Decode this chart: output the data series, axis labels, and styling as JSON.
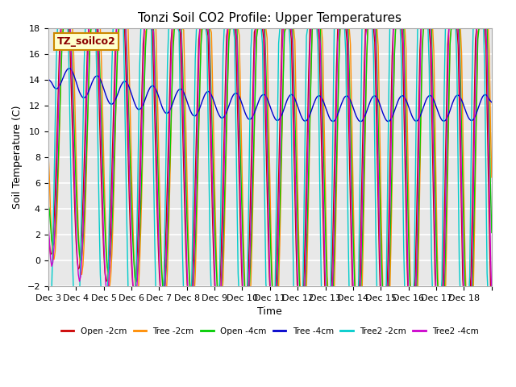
{
  "title": "Tonzi Soil CO2 Profile: Upper Temperatures",
  "xlabel": "Time",
  "ylabel": "Soil Temperature (C)",
  "ylim": [
    -2,
    18
  ],
  "yticks": [
    -2,
    0,
    2,
    4,
    6,
    8,
    10,
    12,
    14,
    16,
    18
  ],
  "bg_color": "#e8e8e8",
  "plot_bg_color": "#e8e8e8",
  "grid_color": "#ffffff",
  "series": [
    {
      "label": "Open -2cm",
      "color": "#cc0000"
    },
    {
      "label": "Tree -2cm",
      "color": "#ff8c00"
    },
    {
      "label": "Open -4cm",
      "color": "#00cc00"
    },
    {
      "label": "Tree -4cm",
      "color": "#0000cc"
    },
    {
      "label": "Tree2 -2cm",
      "color": "#00cccc"
    },
    {
      "label": "Tree2 -4cm",
      "color": "#cc00cc"
    }
  ],
  "legend_label": "TZ_soilco2",
  "n_days": 16,
  "pts_per_day": 24,
  "x_tick_labels": [
    "Dec 3",
    "Dec 4",
    "Dec 5",
    "Dec 6",
    "Dec 7",
    "Dec 8",
    "Dec 9",
    "Dec 10",
    "Dec 11",
    "Dec 12",
    "Dec 13",
    "Dec 14",
    "Dec 15",
    "Dec 16",
    "Dec 17",
    "Dec 18"
  ]
}
